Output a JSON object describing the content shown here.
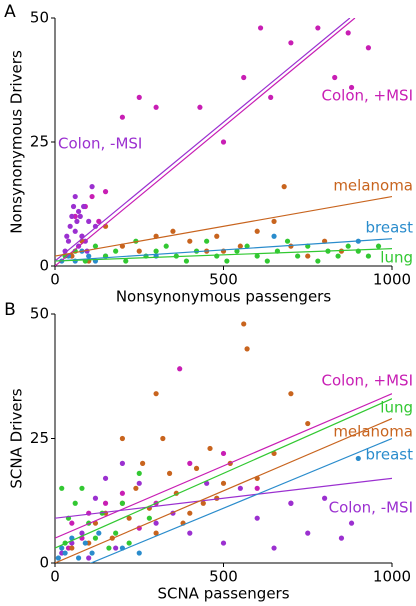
{
  "chart_data": [
    {
      "type": "scatter",
      "panel": "A",
      "xlabel": "Nonsynonymous passengers",
      "ylabel": "Nonsynonymous Drivers",
      "xlim": [
        0,
        1000
      ],
      "ylim": [
        0,
        50
      ],
      "xticks": [
        0,
        500,
        1000
      ],
      "yticks": [
        0,
        25,
        50
      ],
      "series": [
        {
          "name": "Colon, +MSI",
          "color": "#c81eb4",
          "x": [
            150,
            200,
            250,
            300,
            430,
            500,
            560,
            610,
            640,
            700,
            780,
            830,
            870,
            930,
            880,
            90,
            110,
            60,
            80,
            130
          ],
          "y": [
            15,
            30,
            34,
            32,
            32,
            25,
            38,
            48,
            34,
            45,
            48,
            38,
            47,
            44,
            36,
            12,
            14,
            10,
            6,
            9
          ],
          "fit": {
            "x": [
              0,
              890
            ],
            "y": [
              0,
              50
            ]
          }
        },
        {
          "name": "Colon, -MSI",
          "color": "#9b30d0",
          "x": [
            30,
            40,
            45,
            50,
            55,
            60,
            65,
            70,
            75,
            80,
            85,
            90,
            100,
            110,
            120,
            35,
            50,
            60,
            70,
            95
          ],
          "y": [
            3,
            5,
            8,
            10,
            12,
            7,
            9,
            4,
            10,
            6,
            12,
            5,
            9,
            16,
            8,
            6,
            2,
            14,
            11,
            3
          ],
          "fit": {
            "x": [
              0,
              875
            ],
            "y": [
              1,
              50
            ]
          }
        },
        {
          "name": "melanoma",
          "color": "#c8641e",
          "x": [
            50,
            80,
            100,
            150,
            200,
            250,
            300,
            350,
            400,
            450,
            480,
            500,
            550,
            600,
            650,
            680,
            700,
            750,
            800,
            850
          ],
          "y": [
            2,
            5,
            1,
            8,
            4,
            3,
            6,
            7,
            5,
            3,
            6,
            3,
            4,
            7,
            9,
            16,
            4,
            2,
            5,
            3
          ],
          "fit": {
            "x": [
              0,
              1000
            ],
            "y": [
              2,
              14
            ]
          }
        },
        {
          "name": "breast",
          "color": "#2a8ccc",
          "x": [
            20,
            40,
            60,
            80,
            100,
            150,
            300,
            650,
            900,
            120
          ],
          "y": [
            1,
            2,
            1,
            3,
            2,
            2,
            2,
            6,
            5,
            1
          ],
          "fit": {
            "x": [
              0,
              1000
            ],
            "y": [
              1,
              5.5
            ]
          }
        },
        {
          "name": "lung",
          "color": "#32c832",
          "x": [
            30,
            60,
            90,
            120,
            150,
            180,
            210,
            240,
            270,
            300,
            330,
            360,
            390,
            420,
            450,
            480,
            510,
            540,
            570,
            600,
            630,
            660,
            690,
            720,
            750,
            780,
            810,
            840,
            870,
            900,
            930,
            960
          ],
          "y": [
            2,
            3,
            1,
            4,
            2,
            3,
            1,
            5,
            2,
            3,
            4,
            2,
            1,
            3,
            5,
            2,
            1,
            3,
            4,
            2,
            1,
            3,
            5,
            2,
            4,
            1,
            3,
            2,
            4,
            3,
            2,
            4
          ],
          "fit": {
            "x": [
              0,
              1000
            ],
            "y": [
              1,
              3.5
            ]
          }
        }
      ]
    },
    {
      "type": "scatter",
      "panel": "B",
      "xlabel": "SCNA passengers",
      "ylabel": "SCNA Drivers",
      "xlim": [
        0,
        1000
      ],
      "ylim": [
        0,
        50
      ],
      "xticks": [
        0,
        500,
        1000
      ],
      "yticks": [
        0,
        25,
        50
      ],
      "series": [
        {
          "name": "Colon, +MSI",
          "color": "#c81eb4",
          "x": [
            50,
            100,
            150,
            200,
            250,
            300,
            370,
            400,
            500,
            600,
            700,
            40,
            80
          ],
          "y": [
            8,
            10,
            12,
            14,
            7,
            12,
            39,
            20,
            22,
            15,
            12,
            3,
            5
          ],
          "fit": {
            "x": [
              0,
              1000
            ],
            "y": [
              5,
              34
            ]
          }
        },
        {
          "name": "Colon, -MSI",
          "color": "#9b30d0",
          "x": [
            20,
            50,
            80,
            120,
            150,
            200,
            250,
            300,
            350,
            400,
            450,
            500,
            550,
            600,
            650,
            700,
            750,
            800,
            850,
            880,
            100,
            180
          ],
          "y": [
            2,
            4,
            6,
            13,
            17,
            20,
            16,
            8,
            10,
            6,
            16,
            4,
            15,
            9,
            3,
            12,
            6,
            13,
            5,
            8,
            1,
            3
          ],
          "fit": {
            "x": [
              0,
              1000
            ],
            "y": [
              9,
              17
            ]
          }
        },
        {
          "name": "melanoma",
          "color": "#c8641e",
          "x": [
            50,
            100,
            120,
            150,
            170,
            200,
            220,
            240,
            260,
            280,
            300,
            320,
            340,
            360,
            380,
            400,
            420,
            440,
            460,
            480,
            500,
            520,
            560,
            570,
            600,
            650,
            700,
            750,
            300,
            200
          ],
          "y": [
            3,
            4,
            8,
            10,
            5,
            12,
            9,
            15,
            20,
            11,
            34,
            25,
            18,
            14,
            8,
            10,
            19,
            12,
            23,
            13,
            16,
            20,
            48,
            43,
            17,
            22,
            34,
            28,
            6,
            25
          ],
          "fit": {
            "x": [
              0,
              1000
            ],
            "y": [
              0,
              29
            ]
          }
        },
        {
          "name": "breast",
          "color": "#2a8ccc",
          "x": [
            10,
            20,
            30,
            50,
            70,
            90,
            110,
            130,
            200,
            250,
            900
          ],
          "y": [
            1,
            3,
            2,
            5,
            1,
            4,
            2,
            6,
            3,
            2,
            21
          ],
          "fit": {
            "x": [
              0,
              1000
            ],
            "y": [
              -3,
              25
            ]
          }
        },
        {
          "name": "lung",
          "color": "#32c832",
          "x": [
            20,
            40,
            60,
            80,
            100,
            120,
            140,
            160,
            180,
            200,
            220,
            250,
            280,
            30
          ],
          "y": [
            15,
            9,
            12,
            15,
            8,
            5,
            10,
            3,
            6,
            12,
            4,
            18,
            9,
            4
          ],
          "fit": {
            "x": [
              0,
              1000
            ],
            "y": [
              3,
              33
            ]
          }
        }
      ]
    }
  ]
}
